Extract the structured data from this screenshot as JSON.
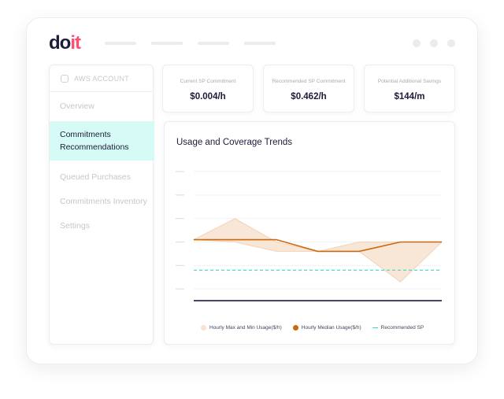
{
  "header": {
    "logo_part1": "do",
    "logo_part2": "it"
  },
  "sidebar": {
    "account_label": "AWS ACCOUNT",
    "items": [
      {
        "label": "Overview",
        "active": false
      },
      {
        "label": "Commitments Recommendations",
        "active": true
      },
      {
        "label": "Queued Purchases",
        "active": false
      },
      {
        "label": "Commitments Inventory",
        "active": false
      },
      {
        "label": "Settings",
        "active": false
      }
    ]
  },
  "summary_cards": [
    {
      "label": "Current SP Commitment",
      "value": "$0.004/h"
    },
    {
      "label": "Recommended SP Commitment",
      "value": "$0.462/h"
    },
    {
      "label": "Potential Additional Savings",
      "value": "$144/m"
    }
  ],
  "chart_panel": {
    "title": "Usage and Coverage Trends"
  },
  "chart_data": {
    "type": "line",
    "x": [
      1,
      2,
      3,
      4,
      5,
      6,
      7
    ],
    "ylim": [
      0,
      6
    ],
    "grid": true,
    "legend_position": "bottom",
    "series": [
      {
        "name": "Hourly Max and Min Usage($/h)",
        "kind": "band",
        "upper": [
          3.1,
          4.0,
          3.0,
          2.6,
          3.0,
          3.0,
          3.0
        ],
        "lower": [
          3.1,
          3.0,
          2.6,
          2.6,
          2.6,
          1.3,
          3.0
        ],
        "color": "#f7e3d2"
      },
      {
        "name": "Hourly Median Usage($/h)",
        "kind": "line",
        "values": [
          3.1,
          3.1,
          3.1,
          2.6,
          2.6,
          3.0,
          3.0
        ],
        "color": "#c96a10"
      },
      {
        "name": "Recommended SP",
        "kind": "dashed",
        "values": [
          1.8,
          1.8,
          1.8,
          1.8,
          1.8,
          1.8,
          1.8
        ],
        "color": "#3fd8c8"
      },
      {
        "kind": "line",
        "values": [
          0.5,
          0.5,
          0.5,
          0.5,
          0.5,
          0.5,
          0.5
        ],
        "color": "#1c1b3a"
      }
    ]
  }
}
